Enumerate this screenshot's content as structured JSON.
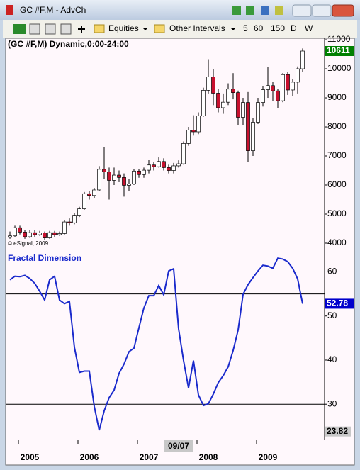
{
  "window": {
    "title": "GC #F,M - AdvCh",
    "toolbar": [
      "Equities",
      "Other Intervals",
      "5",
      "60",
      "150",
      "D",
      "W"
    ]
  },
  "chart_data": [
    {
      "type": "candlestick",
      "title": "(GC #F,M) Dynamic,0:00-24:00",
      "note": "© eSignal, 2009",
      "open": [
        4200,
        4250,
        4530,
        4380,
        4220,
        4360,
        4290,
        4350,
        4180,
        4360,
        4290,
        4330,
        4730,
        4700,
        4960,
        5180,
        5700,
        5640,
        5830,
        6540,
        6450,
        6160,
        6340,
        6260,
        5990,
        6040,
        6480,
        6360,
        6510,
        6690,
        6630,
        6810,
        6600,
        6500,
        6660,
        6730,
        7430,
        7890,
        7830,
        8380,
        9260,
        9720,
        9160,
        8660,
        8850,
        9300,
        9180,
        8330,
        8840,
        7180,
        8160,
        8840,
        9280,
        9420,
        9240,
        8900,
        9800,
        9270,
        9540,
        10000
      ],
      "high": [
        4400,
        4600,
        4600,
        4450,
        4450,
        4440,
        4420,
        4400,
        4420,
        4420,
        4400,
        4790,
        4850,
        5030,
        5250,
        5760,
        5800,
        5900,
        6650,
        7300,
        6600,
        6600,
        6500,
        6400,
        6200,
        6550,
        6540,
        6600,
        6860,
        6800,
        6950,
        6920,
        6700,
        6760,
        6850,
        7500,
        8000,
        8400,
        8500,
        9350,
        10330,
        10000,
        9300,
        9150,
        9500,
        9850,
        9250,
        9000,
        9200,
        8300,
        9000,
        9400,
        10060,
        9560,
        9300,
        9850,
        9900,
        9650,
        10080,
        10700
      ],
      "low": [
        4150,
        4200,
        4300,
        4150,
        4180,
        4220,
        4250,
        4100,
        4150,
        4220,
        4250,
        4300,
        4600,
        4650,
        4900,
        5150,
        5500,
        5550,
        5800,
        6200,
        5500,
        6000,
        6100,
        5600,
        5800,
        6000,
        6250,
        6250,
        6400,
        6500,
        6600,
        6500,
        6400,
        6400,
        6600,
        6700,
        7350,
        7700,
        7750,
        8350,
        9150,
        8750,
        8500,
        8450,
        8750,
        8950,
        8050,
        8050,
        6800,
        7000,
        8100,
        8700,
        9000,
        8900,
        8650,
        8850,
        9100,
        9050,
        9150,
        9900
      ],
      "close": [
        4250,
        4530,
        4380,
        4220,
        4360,
        4290,
        4350,
        4180,
        4360,
        4290,
        4330,
        4730,
        4700,
        4960,
        5180,
        5700,
        5640,
        5830,
        6540,
        6450,
        6160,
        6340,
        6260,
        5990,
        6040,
        6480,
        6360,
        6510,
        6690,
        6630,
        6810,
        6600,
        6500,
        6660,
        6730,
        7430,
        7890,
        7830,
        8380,
        9260,
        9720,
        9160,
        8660,
        8850,
        9300,
        9180,
        8330,
        8840,
        7180,
        8160,
        8840,
        9280,
        9420,
        9240,
        8900,
        9800,
        9270,
        9540,
        10000,
        10611
      ],
      "up_color": "#ffffff",
      "down_color": "#c8102e",
      "last_color": "#008000",
      "xlim": [
        -0.86,
        63.43
      ],
      "ylim": [
        3780,
        11050
      ],
      "yticks": [
        4000,
        5000,
        6000,
        7000,
        8000,
        9000,
        10000,
        11000
      ]
    },
    {
      "type": "line",
      "title": "Fractal Dimension",
      "color": "#1a2acc",
      "values": [
        58.2,
        59.0,
        58.9,
        59.2,
        58.5,
        57.4,
        55.6,
        53.6,
        58.2,
        59.0,
        53.6,
        52.8,
        53.3,
        42.9,
        37.2,
        37.5,
        37.5,
        29.5,
        24.1,
        28.5,
        31.5,
        33.2,
        37.0,
        39.1,
        41.9,
        42.7,
        47.3,
        51.8,
        54.6,
        54.6,
        56.9,
        54.8,
        60.2,
        60.7,
        47.1,
        39.9,
        33.7,
        39.9,
        32.1,
        29.7,
        30.1,
        32.3,
        34.9,
        36.5,
        38.5,
        42.2,
        46.8,
        54.9,
        57.1,
        58.7,
        60.2,
        61.5,
        61.3,
        60.8,
        63.1,
        62.9,
        62.3,
        60.8,
        58.4,
        52.78
      ],
      "levels": [
        30,
        55
      ],
      "low_marker": 23.82,
      "xlim": [
        -0.86,
        63.43
      ],
      "ylim": [
        22,
        65.06
      ],
      "yticks": [
        30,
        40,
        50,
        60
      ],
      "xticks": [
        {
          "value": 4,
          "label": "2005"
        },
        {
          "value": 16,
          "label": "2006"
        },
        {
          "value": 28,
          "label": "2007"
        },
        {
          "value": 40,
          "label": "2008"
        },
        {
          "value": 52,
          "label": "2009"
        }
      ],
      "cursor": {
        "value": 34,
        "label": "09/07"
      }
    }
  ]
}
